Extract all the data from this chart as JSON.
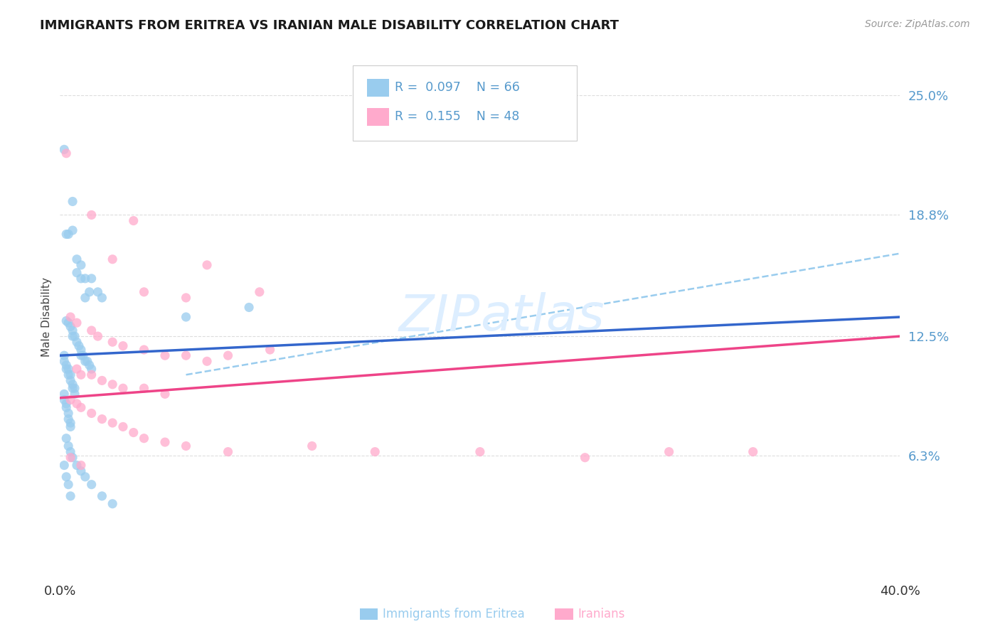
{
  "title": "IMMIGRANTS FROM ERITREA VS IRANIAN MALE DISABILITY CORRELATION CHART",
  "source_text": "Source: ZipAtlas.com",
  "ylabel": "Male Disability",
  "xlim": [
    0.0,
    0.4
  ],
  "ylim": [
    0.0,
    0.27
  ],
  "ytick_values": [
    0.063,
    0.125,
    0.188,
    0.25
  ],
  "ytick_labels": [
    "6.3%",
    "12.5%",
    "18.8%",
    "25.0%"
  ],
  "xtick_values": [
    0.0,
    0.4
  ],
  "xtick_labels": [
    "0.0%",
    "40.0%"
  ],
  "legend_r1": "0.097",
  "legend_n1": "N = 66",
  "legend_r2": "0.155",
  "legend_n2": "N = 48",
  "color_blue": "#99ccee",
  "color_pink": "#ffaacc",
  "color_line_blue": "#3366cc",
  "color_line_pink": "#ee4488",
  "color_dash": "#99ccee",
  "color_ytick": "#5599cc",
  "color_title": "#1a1a1a",
  "watermark_color": "#ddeeff",
  "background_color": "#ffffff",
  "grid_color": "#dddddd",
  "blue_line_x0": 0.0,
  "blue_line_y0": 0.115,
  "blue_line_x1": 0.4,
  "blue_line_y1": 0.135,
  "pink_line_x0": 0.0,
  "pink_line_y0": 0.093,
  "pink_line_x1": 0.4,
  "pink_line_y1": 0.125,
  "dash_line_x0": 0.06,
  "dash_line_y0": 0.105,
  "dash_line_x1": 0.4,
  "dash_line_y1": 0.168,
  "blue_dots": [
    [
      0.002,
      0.222
    ],
    [
      0.003,
      0.178
    ],
    [
      0.004,
      0.178
    ],
    [
      0.006,
      0.195
    ],
    [
      0.006,
      0.18
    ],
    [
      0.008,
      0.165
    ],
    [
      0.008,
      0.158
    ],
    [
      0.01,
      0.162
    ],
    [
      0.01,
      0.155
    ],
    [
      0.012,
      0.155
    ],
    [
      0.012,
      0.145
    ],
    [
      0.014,
      0.148
    ],
    [
      0.015,
      0.155
    ],
    [
      0.018,
      0.148
    ],
    [
      0.02,
      0.145
    ],
    [
      0.003,
      0.133
    ],
    [
      0.004,
      0.132
    ],
    [
      0.005,
      0.13
    ],
    [
      0.006,
      0.128
    ],
    [
      0.006,
      0.125
    ],
    [
      0.007,
      0.125
    ],
    [
      0.008,
      0.122
    ],
    [
      0.009,
      0.12
    ],
    [
      0.01,
      0.118
    ],
    [
      0.01,
      0.115
    ],
    [
      0.011,
      0.115
    ],
    [
      0.012,
      0.112
    ],
    [
      0.013,
      0.112
    ],
    [
      0.014,
      0.11
    ],
    [
      0.015,
      0.108
    ],
    [
      0.002,
      0.115
    ],
    [
      0.002,
      0.112
    ],
    [
      0.003,
      0.11
    ],
    [
      0.003,
      0.108
    ],
    [
      0.004,
      0.108
    ],
    [
      0.004,
      0.105
    ],
    [
      0.005,
      0.105
    ],
    [
      0.005,
      0.102
    ],
    [
      0.006,
      0.1
    ],
    [
      0.006,
      0.098
    ],
    [
      0.007,
      0.098
    ],
    [
      0.007,
      0.095
    ],
    [
      0.002,
      0.095
    ],
    [
      0.002,
      0.092
    ],
    [
      0.003,
      0.09
    ],
    [
      0.003,
      0.088
    ],
    [
      0.004,
      0.085
    ],
    [
      0.004,
      0.082
    ],
    [
      0.005,
      0.08
    ],
    [
      0.005,
      0.078
    ],
    [
      0.003,
      0.072
    ],
    [
      0.004,
      0.068
    ],
    [
      0.005,
      0.065
    ],
    [
      0.006,
      0.062
    ],
    [
      0.008,
      0.058
    ],
    [
      0.01,
      0.055
    ],
    [
      0.012,
      0.052
    ],
    [
      0.015,
      0.048
    ],
    [
      0.02,
      0.042
    ],
    [
      0.025,
      0.038
    ],
    [
      0.06,
      0.135
    ],
    [
      0.09,
      0.14
    ],
    [
      0.002,
      0.058
    ],
    [
      0.003,
      0.052
    ],
    [
      0.004,
      0.048
    ],
    [
      0.005,
      0.042
    ]
  ],
  "pink_dots": [
    [
      0.003,
      0.22
    ],
    [
      0.015,
      0.188
    ],
    [
      0.035,
      0.185
    ],
    [
      0.025,
      0.165
    ],
    [
      0.07,
      0.162
    ],
    [
      0.04,
      0.148
    ],
    [
      0.06,
      0.145
    ],
    [
      0.095,
      0.148
    ],
    [
      0.005,
      0.135
    ],
    [
      0.008,
      0.132
    ],
    [
      0.015,
      0.128
    ],
    [
      0.018,
      0.125
    ],
    [
      0.025,
      0.122
    ],
    [
      0.03,
      0.12
    ],
    [
      0.04,
      0.118
    ],
    [
      0.05,
      0.115
    ],
    [
      0.06,
      0.115
    ],
    [
      0.07,
      0.112
    ],
    [
      0.08,
      0.115
    ],
    [
      0.1,
      0.118
    ],
    [
      0.008,
      0.108
    ],
    [
      0.01,
      0.105
    ],
    [
      0.015,
      0.105
    ],
    [
      0.02,
      0.102
    ],
    [
      0.025,
      0.1
    ],
    [
      0.03,
      0.098
    ],
    [
      0.04,
      0.098
    ],
    [
      0.05,
      0.095
    ],
    [
      0.005,
      0.092
    ],
    [
      0.008,
      0.09
    ],
    [
      0.01,
      0.088
    ],
    [
      0.015,
      0.085
    ],
    [
      0.02,
      0.082
    ],
    [
      0.025,
      0.08
    ],
    [
      0.03,
      0.078
    ],
    [
      0.035,
      0.075
    ],
    [
      0.04,
      0.072
    ],
    [
      0.05,
      0.07
    ],
    [
      0.06,
      0.068
    ],
    [
      0.08,
      0.065
    ],
    [
      0.12,
      0.068
    ],
    [
      0.15,
      0.065
    ],
    [
      0.2,
      0.065
    ],
    [
      0.25,
      0.062
    ],
    [
      0.29,
      0.065
    ],
    [
      0.33,
      0.065
    ],
    [
      0.005,
      0.062
    ],
    [
      0.01,
      0.058
    ]
  ]
}
